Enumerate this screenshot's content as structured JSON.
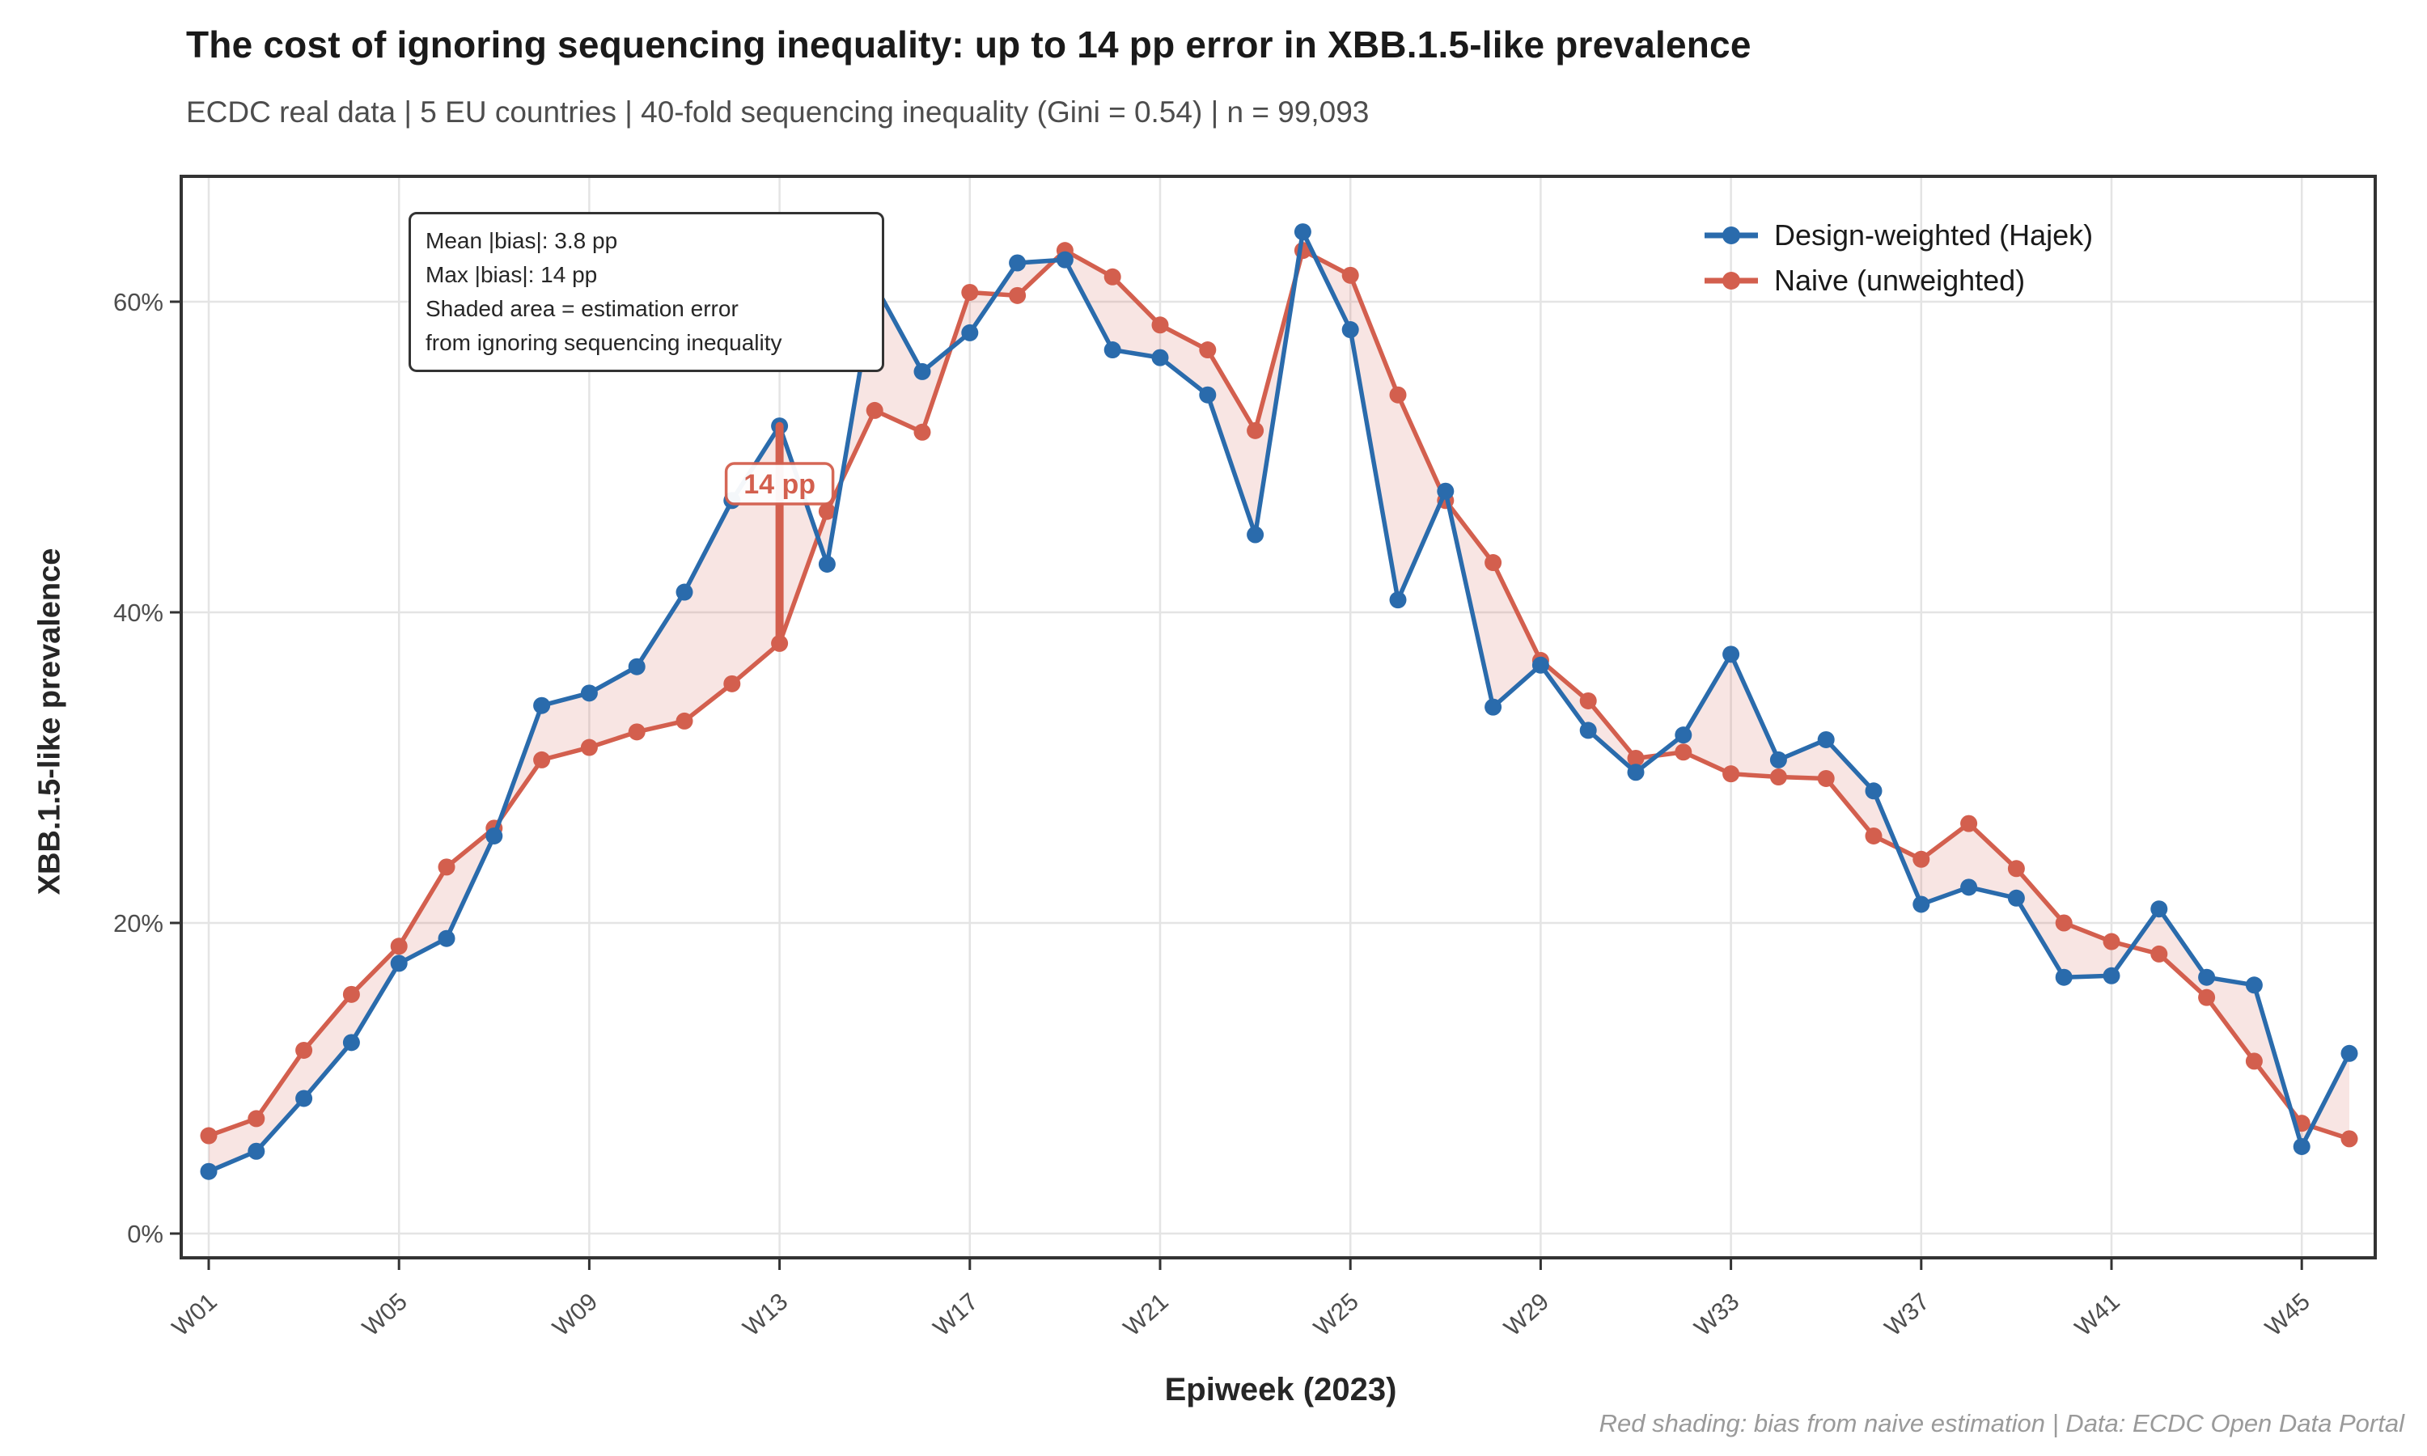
{
  "header": {
    "title": "The cost of ignoring sequencing inequality: up to 14 pp error in XBB.1.5-like prevalence",
    "subtitle": "ECDC real data | 5 EU countries | 40-fold sequencing inequality (Gini = 0.54) | n = 99,093"
  },
  "caption": "Red shading: bias from naive estimation | Data: ECDC Open Data Portal",
  "annotation": {
    "lines": [
      "Mean |bias|: 3.8 pp",
      "Max |bias|: 14 pp",
      "Shaded area = estimation error",
      "from ignoring sequencing inequality"
    ]
  },
  "legend": [
    {
      "label": "Design-weighted (Hajek)",
      "color": "#2a6bac"
    },
    {
      "label": "Naive (unweighted)",
      "color": "#d35f4e"
    }
  ],
  "chart_data": {
    "type": "line",
    "title": "The cost of ignoring sequencing inequality: up to 14 pp error in XBB.1.5-like prevalence",
    "xlabel": "Epiweek (2023)",
    "ylabel": "XBB.1.5-like prevalence",
    "x": [
      "W01",
      "W02",
      "W03",
      "W04",
      "W05",
      "W06",
      "W07",
      "W08",
      "W09",
      "W10",
      "W11",
      "W12",
      "W13",
      "W14",
      "W15",
      "W16",
      "W17",
      "W18",
      "W19",
      "W20",
      "W21",
      "W22",
      "W23",
      "W24",
      "W25",
      "W26",
      "W27",
      "W28",
      "W29",
      "W30",
      "W31",
      "W32",
      "W33",
      "W34",
      "W35",
      "W36",
      "W37",
      "W38",
      "W39",
      "W40",
      "W41",
      "W42",
      "W43",
      "W44",
      "W45",
      "W46"
    ],
    "x_tick_labels": [
      "W01",
      "W05",
      "W09",
      "W13",
      "W17",
      "W21",
      "W25",
      "W29",
      "W33",
      "W37",
      "W41",
      "W45"
    ],
    "y_tick_labels": [
      "0%",
      "20%",
      "40%",
      "60%"
    ],
    "y_tick_values": [
      0,
      20,
      40,
      60
    ],
    "ylim": [
      -1.6,
      68.1
    ],
    "grid": "major-only",
    "legend_position": "top-right-inside",
    "series": [
      {
        "name": "Design-weighted (Hajek)",
        "color": "#2a6bac",
        "values": [
          4.0,
          5.3,
          8.7,
          12.3,
          17.4,
          19.0,
          25.6,
          34.0,
          34.8,
          36.5,
          41.3,
          47.2,
          52.0,
          43.1,
          61.1,
          55.5,
          58.0,
          62.5,
          62.7,
          56.9,
          56.4,
          54.0,
          45.0,
          64.5,
          58.2,
          40.8,
          47.8,
          33.9,
          36.6,
          32.4,
          29.7,
          32.1,
          37.3,
          30.5,
          31.8,
          28.5,
          21.2,
          22.3,
          21.6,
          16.5,
          16.6,
          20.9,
          16.5,
          16.0,
          5.6,
          11.6
        ]
      },
      {
        "name": "Naive (unweighted)",
        "color": "#d35f4e",
        "values": [
          6.3,
          7.4,
          11.8,
          15.4,
          18.5,
          23.6,
          26.1,
          30.5,
          31.3,
          32.3,
          33.0,
          35.4,
          38.0,
          46.5,
          53.0,
          51.6,
          60.6,
          60.4,
          63.3,
          61.6,
          58.5,
          56.9,
          51.7,
          63.3,
          61.7,
          54.0,
          47.2,
          43.2,
          36.9,
          34.3,
          30.6,
          31.0,
          29.6,
          29.4,
          29.3,
          25.6,
          24.1,
          26.4,
          23.5,
          20.0,
          18.8,
          18.0,
          15.2,
          11.1,
          7.1,
          6.1
        ]
      }
    ],
    "band_fill": "rgba(211,95,78,0.16)",
    "bias_marker": {
      "week": "W13",
      "from": 38.0,
      "to": 52.0,
      "label": "14 pp"
    },
    "style": {
      "grid_color": "#e4e4e4",
      "border_color": "#333333",
      "tick_label_color": "#4d4d4d"
    }
  }
}
